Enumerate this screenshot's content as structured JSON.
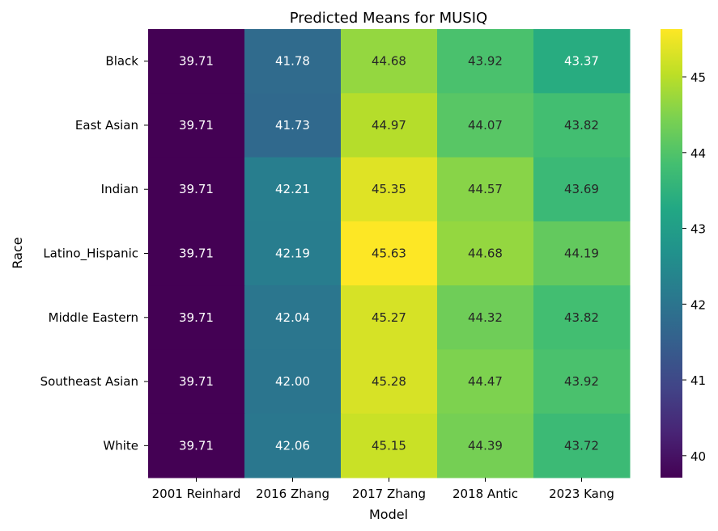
{
  "chart_data": {
    "type": "heatmap",
    "title": "Predicted Means for MUSIQ",
    "xlabel": "Model",
    "ylabel": "Race",
    "x_categories": [
      "2001 Reinhard",
      "2016 Zhang",
      "2017 Zhang",
      "2018 Antic",
      "2023 Kang"
    ],
    "y_categories": [
      "Black",
      "East Asian",
      "Indian",
      "Latino_Hispanic",
      "Middle Eastern",
      "Southeast Asian",
      "White"
    ],
    "values": [
      [
        39.71,
        41.78,
        44.68,
        43.92,
        43.37
      ],
      [
        39.71,
        41.73,
        44.97,
        44.07,
        43.82
      ],
      [
        39.71,
        42.21,
        45.35,
        44.57,
        43.69
      ],
      [
        39.71,
        42.19,
        45.63,
        44.68,
        44.19
      ],
      [
        39.71,
        42.04,
        45.27,
        44.32,
        43.82
      ],
      [
        39.71,
        42.0,
        45.28,
        44.47,
        43.92
      ],
      [
        39.71,
        42.06,
        45.15,
        44.39,
        43.72
      ]
    ],
    "value_labels": [
      [
        "39.71",
        "41.78",
        "44.68",
        "43.92",
        "43.37"
      ],
      [
        "39.71",
        "41.73",
        "44.97",
        "44.07",
        "43.82"
      ],
      [
        "39.71",
        "42.21",
        "45.35",
        "44.57",
        "43.69"
      ],
      [
        "39.71",
        "42.19",
        "45.63",
        "44.68",
        "44.19"
      ],
      [
        "39.71",
        "42.04",
        "45.27",
        "44.32",
        "43.82"
      ],
      [
        "39.71",
        "42.00",
        "45.28",
        "44.47",
        "43.92"
      ],
      [
        "39.71",
        "42.06",
        "45.15",
        "44.39",
        "43.72"
      ]
    ],
    "colormap": "viridis",
    "colorbar": {
      "range": [
        39.71,
        45.63
      ],
      "ticks": [
        40,
        41,
        42,
        43,
        44,
        45
      ],
      "tick_labels": [
        "40",
        "41",
        "42",
        "43",
        "44",
        "45"
      ]
    },
    "grid": false,
    "legend": "colorbar-right"
  }
}
